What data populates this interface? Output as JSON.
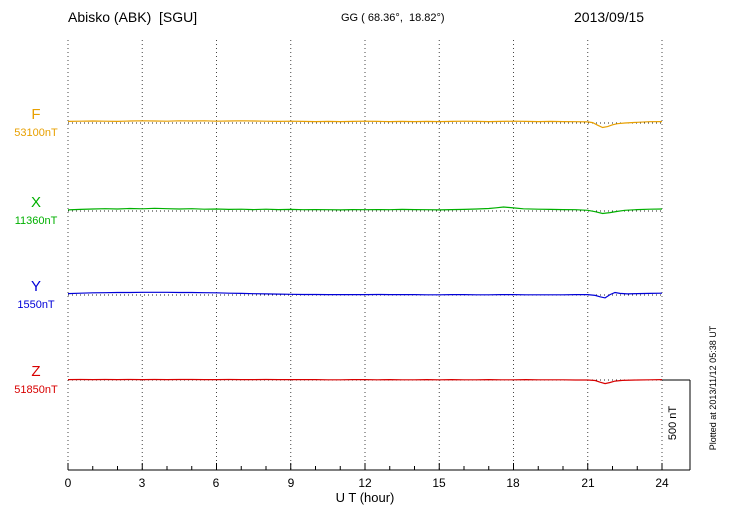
{
  "header": {
    "station": "Abisko (ABK)  [SGU]",
    "coords": "GG ( 68.36°,  18.82°)",
    "date": "2013/09/15"
  },
  "axis": {
    "xlabel": "U T (hour)",
    "ticks": [
      "0",
      "3",
      "6",
      "9",
      "12",
      "15",
      "18",
      "21",
      "24"
    ]
  },
  "scalebar": {
    "label": "500 nT",
    "span_nT": 500
  },
  "footer": {
    "plotted": "Plotted at 2013/11/12 05:38 UT"
  },
  "colors": {
    "grid": "#444444",
    "baseline": "#222222",
    "axis": "#000000"
  },
  "chart_data": {
    "type": "line",
    "title": "Abisko (ABK) [SGU] magnetogram 2013/09/15",
    "xlabel": "U T (hour)",
    "x_range": [
      0,
      24
    ],
    "x_ticks": [
      0,
      3,
      6,
      9,
      12,
      15,
      18,
      21,
      24
    ],
    "scale_nT_per_division": 500,
    "grid": "vertical-dotted",
    "legend_position": "left",
    "series": [
      {
        "name": "F",
        "label": "F",
        "value_label": "53100nT",
        "baseline_nT": 53100,
        "color": "#e8a000",
        "units": "nT",
        "points": [
          [
            0,
            9
          ],
          [
            0.5,
            10
          ],
          [
            1,
            11
          ],
          [
            1.5,
            10
          ],
          [
            2,
            9
          ],
          [
            2.5,
            11
          ],
          [
            3,
            12
          ],
          [
            3.5,
            11
          ],
          [
            4,
            10
          ],
          [
            4.5,
            12
          ],
          [
            5,
            11
          ],
          [
            5.5,
            12
          ],
          [
            6,
            10
          ],
          [
            6.5,
            11
          ],
          [
            7,
            12
          ],
          [
            7.5,
            11
          ],
          [
            8,
            10
          ],
          [
            8.5,
            9
          ],
          [
            9,
            10
          ],
          [
            9.5,
            9
          ],
          [
            10,
            8
          ],
          [
            10.5,
            9
          ],
          [
            11,
            8
          ],
          [
            11.5,
            9
          ],
          [
            12,
            10
          ],
          [
            12.5,
            9
          ],
          [
            13,
            8
          ],
          [
            13.5,
            9
          ],
          [
            14,
            8
          ],
          [
            14.5,
            9
          ],
          [
            15,
            8
          ],
          [
            15.5,
            9
          ],
          [
            16,
            10
          ],
          [
            16.5,
            9
          ],
          [
            17,
            8
          ],
          [
            17.5,
            9
          ],
          [
            18,
            10
          ],
          [
            18.5,
            9
          ],
          [
            19,
            8
          ],
          [
            19.5,
            9
          ],
          [
            20,
            8
          ],
          [
            20.5,
            7
          ],
          [
            21,
            6
          ],
          [
            21.2,
            2
          ],
          [
            21.4,
            -12
          ],
          [
            21.6,
            -25
          ],
          [
            21.8,
            -20
          ],
          [
            22,
            -10
          ],
          [
            22.2,
            -4
          ],
          [
            22.5,
            0
          ],
          [
            23,
            4
          ],
          [
            23.5,
            7
          ],
          [
            24,
            8
          ]
        ]
      },
      {
        "name": "X",
        "label": "X",
        "value_label": "11360nT",
        "baseline_nT": 11360,
        "color": "#00b000",
        "units": "nT",
        "points": [
          [
            0,
            6
          ],
          [
            0.5,
            9
          ],
          [
            1,
            11
          ],
          [
            1.5,
            13
          ],
          [
            2,
            11
          ],
          [
            2.5,
            14
          ],
          [
            3,
            12
          ],
          [
            3.5,
            15
          ],
          [
            4,
            13
          ],
          [
            4.5,
            11
          ],
          [
            5,
            13
          ],
          [
            5.5,
            10
          ],
          [
            6,
            11
          ],
          [
            6.5,
            9
          ],
          [
            7,
            10
          ],
          [
            7.5,
            8
          ],
          [
            8,
            10
          ],
          [
            8.5,
            8
          ],
          [
            9,
            9
          ],
          [
            9.5,
            7
          ],
          [
            10,
            8
          ],
          [
            10.5,
            7
          ],
          [
            11,
            6
          ],
          [
            11.5,
            8
          ],
          [
            12,
            7
          ],
          [
            12.5,
            8
          ],
          [
            13,
            7
          ],
          [
            13.5,
            9
          ],
          [
            14,
            8
          ],
          [
            14.5,
            7
          ],
          [
            15,
            6
          ],
          [
            15.5,
            8
          ],
          [
            16,
            9
          ],
          [
            16.5,
            11
          ],
          [
            17,
            14
          ],
          [
            17.3,
            18
          ],
          [
            17.6,
            22
          ],
          [
            18,
            17
          ],
          [
            18.4,
            12
          ],
          [
            19,
            10
          ],
          [
            19.5,
            9
          ],
          [
            20,
            8
          ],
          [
            20.5,
            7
          ],
          [
            21,
            4
          ],
          [
            21.3,
            -4
          ],
          [
            21.6,
            -14
          ],
          [
            21.9,
            -9
          ],
          [
            22.2,
            -2
          ],
          [
            22.5,
            4
          ],
          [
            23,
            8
          ],
          [
            23.5,
            10
          ],
          [
            24,
            11
          ]
        ]
      },
      {
        "name": "Y",
        "label": "Y",
        "value_label": "1550nT",
        "baseline_nT": 1550,
        "color": "#0000d8",
        "units": "nT",
        "points": [
          [
            0,
            8
          ],
          [
            0.5,
            10
          ],
          [
            1,
            12
          ],
          [
            1.5,
            13
          ],
          [
            2,
            14
          ],
          [
            2.5,
            14
          ],
          [
            3,
            15
          ],
          [
            3.5,
            15
          ],
          [
            4,
            15
          ],
          [
            4.5,
            14
          ],
          [
            5,
            14
          ],
          [
            5.5,
            13
          ],
          [
            6,
            12
          ],
          [
            6.5,
            10
          ],
          [
            7,
            9
          ],
          [
            7.5,
            7
          ],
          [
            8,
            6
          ],
          [
            8.5,
            5
          ],
          [
            9,
            4
          ],
          [
            9.5,
            3
          ],
          [
            10,
            3
          ],
          [
            10.5,
            2
          ],
          [
            11,
            2
          ],
          [
            11.5,
            2
          ],
          [
            12,
            2
          ],
          [
            12.5,
            3
          ],
          [
            13,
            2
          ],
          [
            13.5,
            2
          ],
          [
            14,
            2
          ],
          [
            14.5,
            1
          ],
          [
            15,
            1
          ],
          [
            15.5,
            2
          ],
          [
            16,
            2
          ],
          [
            16.5,
            1
          ],
          [
            17,
            1
          ],
          [
            17.5,
            2
          ],
          [
            18,
            2
          ],
          [
            18.5,
            1
          ],
          [
            19,
            1
          ],
          [
            19.5,
            1
          ],
          [
            20,
            1
          ],
          [
            20.5,
            2
          ],
          [
            21,
            2
          ],
          [
            21.3,
            -2
          ],
          [
            21.5,
            -10
          ],
          [
            21.7,
            -16
          ],
          [
            21.9,
            2
          ],
          [
            22.1,
            14
          ],
          [
            22.3,
            9
          ],
          [
            22.6,
            6
          ],
          [
            23,
            8
          ],
          [
            23.5,
            9
          ],
          [
            24,
            10
          ]
        ]
      },
      {
        "name": "Z",
        "label": "Z",
        "value_label": "51850nT",
        "baseline_nT": 51850,
        "color": "#d80000",
        "units": "nT",
        "points": [
          [
            0,
            2
          ],
          [
            0.5,
            3
          ],
          [
            1,
            2
          ],
          [
            1.5,
            3
          ],
          [
            2,
            2
          ],
          [
            2.5,
            3
          ],
          [
            3,
            2
          ],
          [
            3.5,
            3
          ],
          [
            4,
            2
          ],
          [
            4.5,
            3
          ],
          [
            5,
            3
          ],
          [
            5.5,
            2
          ],
          [
            6,
            2
          ],
          [
            6.5,
            3
          ],
          [
            7,
            2
          ],
          [
            7.5,
            2
          ],
          [
            8,
            3
          ],
          [
            8.5,
            2
          ],
          [
            9,
            2
          ],
          [
            9.5,
            2
          ],
          [
            10,
            2
          ],
          [
            10.5,
            1
          ],
          [
            11,
            1
          ],
          [
            11.5,
            2
          ],
          [
            12,
            2
          ],
          [
            12.5,
            1
          ],
          [
            13,
            2
          ],
          [
            13.5,
            1
          ],
          [
            14,
            1
          ],
          [
            14.5,
            2
          ],
          [
            15,
            1
          ],
          [
            15.5,
            2
          ],
          [
            16,
            1
          ],
          [
            16.5,
            1
          ],
          [
            17,
            2
          ],
          [
            17.5,
            1
          ],
          [
            18,
            1
          ],
          [
            18.5,
            2
          ],
          [
            19,
            1
          ],
          [
            19.5,
            1
          ],
          [
            20,
            1
          ],
          [
            20.5,
            0
          ],
          [
            21,
            0
          ],
          [
            21.3,
            -3
          ],
          [
            21.5,
            -12
          ],
          [
            21.7,
            -20
          ],
          [
            21.9,
            -14
          ],
          [
            22.1,
            -6
          ],
          [
            22.4,
            -2
          ],
          [
            23,
            0
          ],
          [
            23.5,
            1
          ],
          [
            24,
            2
          ]
        ]
      }
    ]
  }
}
